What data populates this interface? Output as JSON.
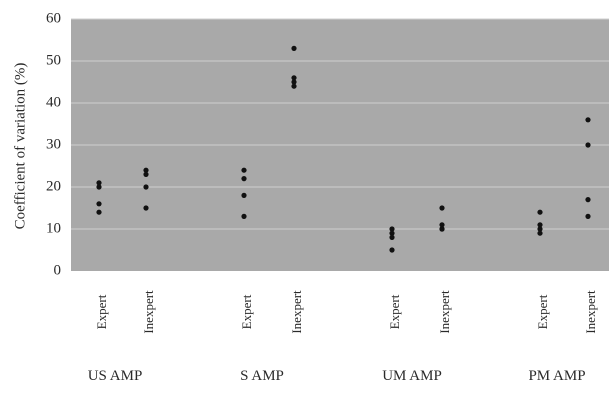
{
  "chart_data": {
    "type": "scatter",
    "title": "",
    "ylabel": "Coefficient of variation (%)",
    "xlabel": "",
    "ylim": [
      0,
      60
    ],
    "yticks": [
      0,
      10,
      20,
      30,
      40,
      50,
      60
    ],
    "grid": true,
    "colors": {
      "plot_background": "#a9a9a9",
      "gridline": "#cfcfcf",
      "point": "#111111"
    },
    "groups": [
      {
        "label": "US AMP",
        "subgroups": [
          {
            "label": "Expert",
            "values": [
              21,
              20,
              16,
              14
            ]
          },
          {
            "label": "Inexpert",
            "values": [
              24,
              23,
              20,
              15
            ]
          }
        ]
      },
      {
        "label": "S AMP",
        "subgroups": [
          {
            "label": "Expert",
            "values": [
              24,
              22,
              18,
              13
            ]
          },
          {
            "label": "Inexpert",
            "values": [
              53,
              46,
              45,
              44
            ]
          }
        ]
      },
      {
        "label": "UM AMP",
        "subgroups": [
          {
            "label": "Expert",
            "values": [
              10,
              9,
              8,
              5
            ]
          },
          {
            "label": "Inexpert",
            "values": [
              15,
              11,
              10,
              10
            ]
          }
        ]
      },
      {
        "label": "PM AMP",
        "subgroups": [
          {
            "label": "Expert",
            "values": [
              14,
              11,
              10,
              9
            ]
          },
          {
            "label": "Inexpert",
            "values": [
              36,
              30,
              17,
              13
            ]
          }
        ]
      }
    ]
  }
}
